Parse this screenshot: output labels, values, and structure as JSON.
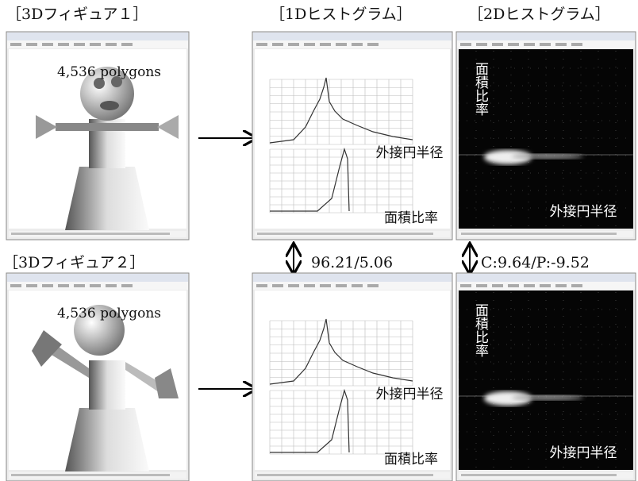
{
  "labels": {
    "figure1": "［3Dフィギュア１］",
    "hist1d": "［1Dヒストグラム］",
    "hist2d": "［2Dヒストグラム］",
    "figure2": "［3Dフィギュア２］"
  },
  "rows": [
    {
      "polygons": "4,536 polygons",
      "hist1d_x": "外接円半径",
      "hist1d_y": "面積比率",
      "hist2d_x": "外接円半径",
      "hist2d_y": "面積比率"
    },
    {
      "polygons": "4,536 polygons",
      "hist1d_x": "外接円半径",
      "hist1d_y": "面積比率",
      "hist2d_x": "外接円半径",
      "hist2d_y": "面積比率"
    }
  ],
  "comparison": {
    "hist1d": "96.21/5.06",
    "hist2d": "C:9.64/P:-9.52"
  }
}
